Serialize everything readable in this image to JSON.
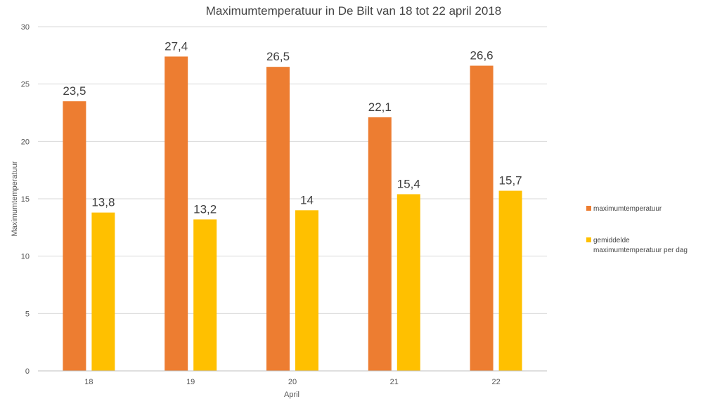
{
  "chart_data": {
    "type": "bar",
    "title": "Maximumtemperatuur in De Bilt van 18 tot 22 april 2018",
    "xlabel": "April",
    "ylabel": "Maximumtemperatuur",
    "categories": [
      "18",
      "19",
      "20",
      "21",
      "22"
    ],
    "ylim": [
      0,
      30
    ],
    "yticks": [
      0,
      5,
      10,
      15,
      20,
      25,
      30
    ],
    "grid": true,
    "legend_position": "right",
    "series": [
      {
        "name": "maximumtemperatuur",
        "color": "#ED7D31",
        "values": [
          23.5,
          27.4,
          26.5,
          22.1,
          26.6
        ],
        "labels": [
          "23,5",
          "27,4",
          "26,5",
          "22,1",
          "26,6"
        ]
      },
      {
        "name_lines": [
          "gemiddelde",
          "maximumtemperatuur per dag"
        ],
        "color": "#FFC000",
        "values": [
          13.8,
          13.2,
          14.0,
          15.4,
          15.7
        ],
        "labels": [
          "13,8",
          "13,2",
          "14",
          "15,4",
          "15,7"
        ]
      }
    ]
  }
}
